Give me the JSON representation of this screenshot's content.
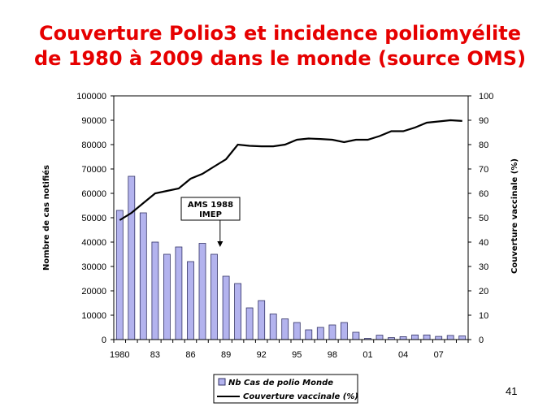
{
  "title_line1": "Couverture Polio3 et incidence poliomyélite",
  "title_line2": "de 1980 à 2009 dans le monde (source OMS)",
  "page_number": "41",
  "colors": {
    "title": "#e60000",
    "bar_fill": "#b3b3ee",
    "bar_stroke": "#333366",
    "line": "#000000"
  },
  "chart_data": {
    "type": "bar",
    "x_tick_labels": [
      "1980",
      "83",
      "86",
      "89",
      "92",
      "95",
      "98",
      "01",
      "04",
      "07"
    ],
    "years": [
      1980,
      1981,
      1982,
      1983,
      1984,
      1985,
      1986,
      1987,
      1988,
      1989,
      1990,
      1991,
      1992,
      1993,
      1994,
      1995,
      1996,
      1997,
      1998,
      1999,
      2000,
      2001,
      2002,
      2003,
      2004,
      2005,
      2006,
      2007,
      2008,
      2009
    ],
    "series": [
      {
        "name": "Nb Cas de polio Monde",
        "kind": "bar",
        "axis": "left",
        "values": [
          53000,
          67000,
          52000,
          40000,
          35000,
          38000,
          32000,
          39500,
          35000,
          26000,
          23000,
          13000,
          16000,
          10500,
          8500,
          7000,
          4000,
          5000,
          6000,
          7000,
          3000,
          500,
          1800,
          800,
          1200,
          1900,
          1900,
          1300,
          1700,
          1500
        ]
      },
      {
        "name": "Couverture vaccinale (%)",
        "kind": "line",
        "axis": "right",
        "values": [
          49,
          52,
          56,
          60,
          61,
          62,
          66,
          68,
          71,
          74,
          80,
          79.5,
          79.3,
          79.3,
          80,
          82,
          82.5,
          82.3,
          82,
          81,
          82,
          82,
          83.5,
          85.5,
          85.5,
          87,
          89,
          89.5,
          90,
          89.7
        ]
      }
    ],
    "y_left": {
      "label": "Nombre de cas notifiés",
      "range": [
        0,
        100000
      ],
      "ticks": [
        0,
        10000,
        20000,
        30000,
        40000,
        50000,
        60000,
        70000,
        80000,
        90000,
        100000
      ]
    },
    "y_right": {
      "label": "Couverture vaccinale (%)",
      "range": [
        0,
        100
      ],
      "ticks": [
        0,
        10,
        20,
        30,
        40,
        50,
        60,
        70,
        80,
        90,
        100
      ]
    },
    "annotation": {
      "line1": "AMS 1988",
      "line2": "IMEP",
      "year": 1988
    },
    "legend_position": "bottom",
    "grid": false
  }
}
